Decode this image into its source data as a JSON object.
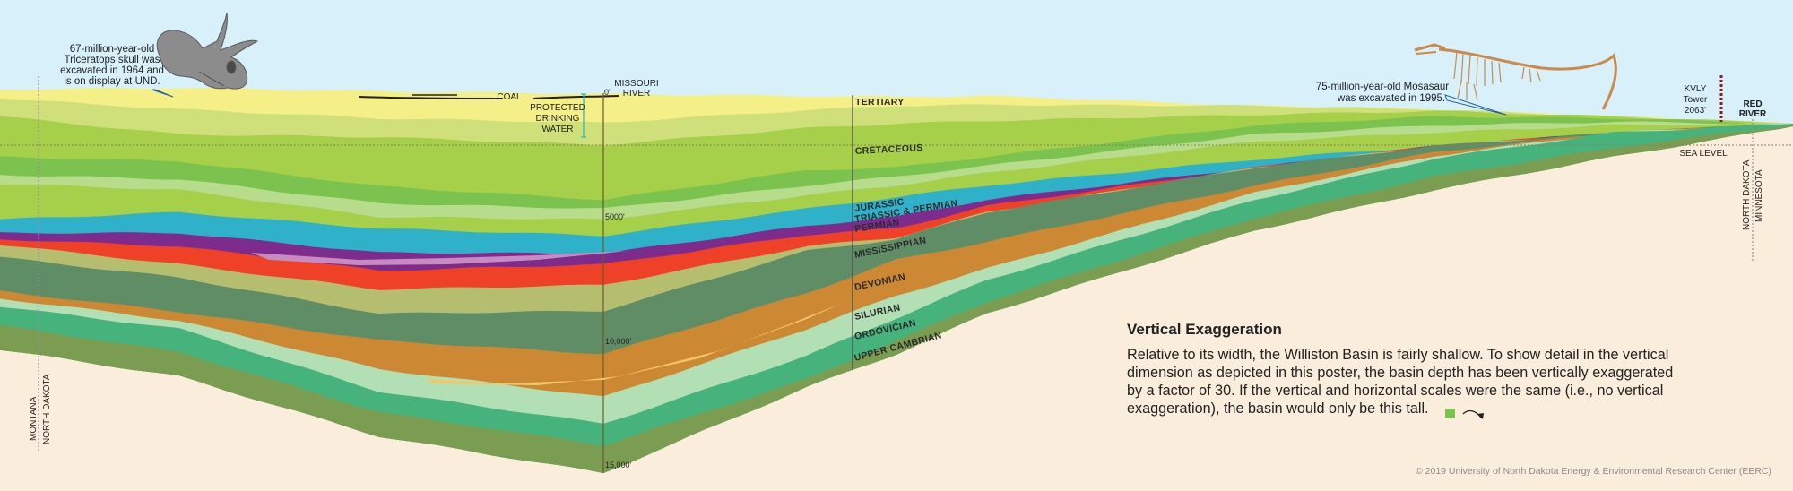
{
  "colors": {
    "sky": "#d7f0fa",
    "basement": "#fbeddc",
    "lens_devonian": "#f0c76a",
    "lens_triassic": "#c68cc0",
    "tower": "#8b1a1a",
    "water_marker": "#1fb5c9",
    "pointer": "#1e5fa8"
  },
  "layers": [
    {
      "color": "#f4ef87"
    },
    {
      "color": "#cfe07a"
    },
    {
      "color": "#a6cf4a"
    },
    {
      "color": "#7cc24f"
    },
    {
      "color": "#b6dc8c"
    },
    {
      "color": "#a6cf4a"
    },
    {
      "color": "#2fb1c9"
    },
    {
      "color": "#7e2b8e"
    },
    {
      "color": "#ef4128"
    },
    {
      "color": "#b5be6f"
    },
    {
      "color": "#5f8d66"
    },
    {
      "color": "#cd8833"
    },
    {
      "color": "#b3dfb5"
    },
    {
      "color": "#46b27c"
    },
    {
      "color": "#7b9d52"
    }
  ],
  "strata_labels": {
    "tertiary": "TERTIARY",
    "cretaceous": "CRETACEOUS",
    "jurassic": "JURASSIC",
    "triassic_permian": "TRIASSIC & PERMIAN",
    "permian": "PERMIAN",
    "mississippian": "MISSISSIPPIAN",
    "devonian": "DEVONIAN",
    "silurian": "SILURIAN",
    "ordovician": "ORDOVICIAN",
    "upper_cambrian": "UPPER CAMBRIAN"
  },
  "depth_scale": {
    "zero": "0'",
    "d5000": "5000'",
    "d10000": "10,000'",
    "d15000": "15,000'"
  },
  "annotations": {
    "triceratops": [
      "67-million-year-old",
      "Triceratops skull was",
      "excavated in 1964 and",
      "is on display at UND."
    ],
    "coal": "COAL",
    "drinking_water": [
      "PROTECTED",
      "DRINKING",
      "WATER"
    ],
    "missouri_river": [
      "MISSOURI",
      "RIVER"
    ],
    "mosasaur": [
      "75-million-year-old Mosasaur",
      "was excavated in 1995."
    ],
    "kvly": [
      "KVLY",
      "Tower",
      "2063'"
    ],
    "red_river": [
      "RED",
      "RIVER"
    ],
    "sea_level": "SEA LEVEL",
    "borders": {
      "west_left": "MONTANA",
      "west_right": "NORTH DAKOTA",
      "east_left": "NORTH DAKOTA",
      "east_right": "MINNESOTA"
    }
  },
  "vertical_exaggeration": {
    "title": "Vertical Exaggeration",
    "lines": [
      "Relative to its width, the Williston Basin is fairly shallow. To show detail in the vertical",
      "dimension as depicted in this poster, the basin depth has been vertically exaggerated",
      "by a factor of 30. If the vertical and horizontal scales were the same (i.e., no vertical",
      "exaggeration), the basin would only be this tall."
    ],
    "factor": 30,
    "square_color": "#7cc24f"
  },
  "copyright": "© 2019 University of North Dakota Energy & Environmental Research Center (EERC)"
}
